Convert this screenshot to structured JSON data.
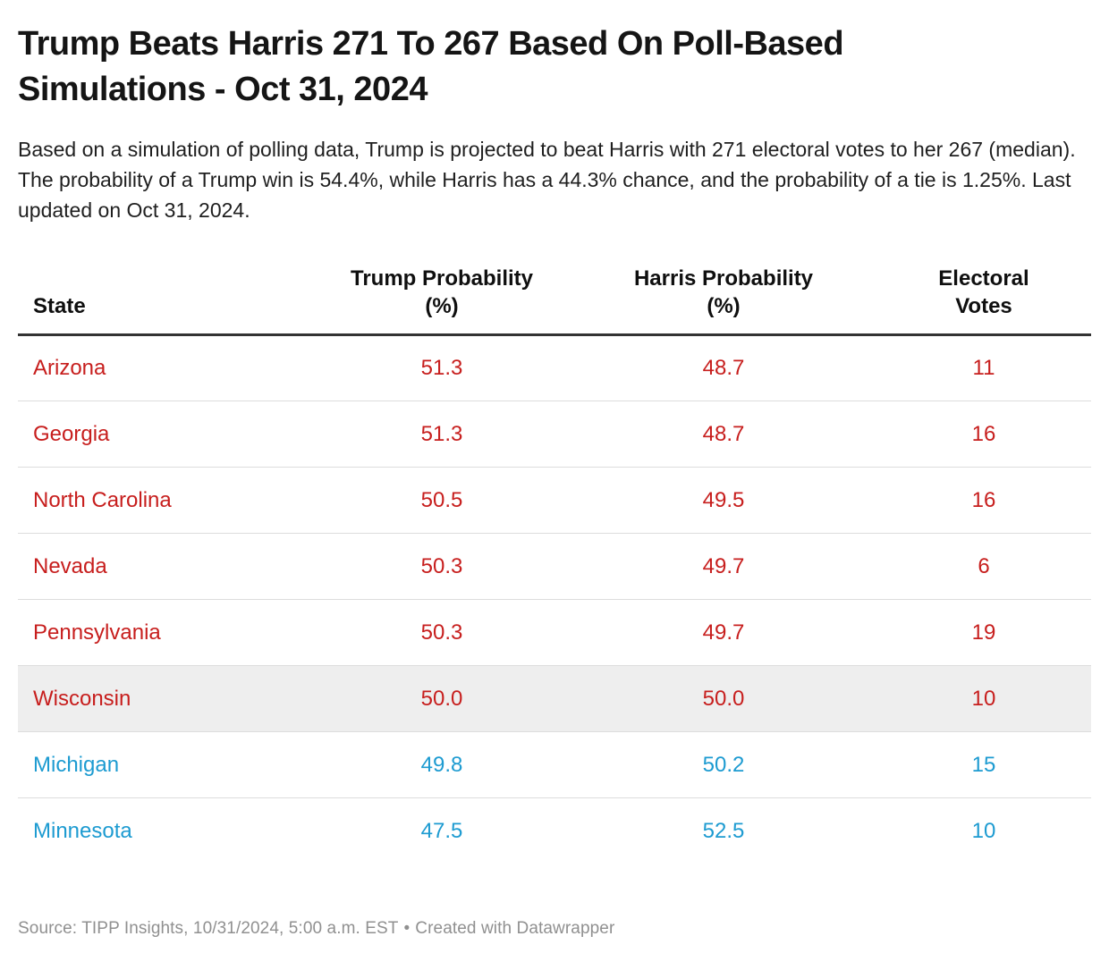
{
  "chart_data": {
    "type": "table",
    "title": "Trump Beats Harris 271 To 267 Based On Poll-Based Simulations - Oct 31, 2024",
    "description": "Based on a simulation of polling data, Trump is projected to beat Harris with 271 electoral votes to her 267 (median). The probability of a Trump win is 54.4%, while Harris has a 44.3% chance, and the probability of a tie is 1.25%. Last updated on Oct 31, 2024.",
    "columns": [
      "State",
      "Trump Probability (%)",
      "Harris Probability (%)",
      "Electoral Votes"
    ],
    "rows": [
      {
        "state": "Arizona",
        "trump": "51.3",
        "harris": "48.7",
        "electoral_votes": "11",
        "leader": "trump",
        "highlighted": false
      },
      {
        "state": "Georgia",
        "trump": "51.3",
        "harris": "48.7",
        "electoral_votes": "16",
        "leader": "trump",
        "highlighted": false
      },
      {
        "state": "North Carolina",
        "trump": "50.5",
        "harris": "49.5",
        "electoral_votes": "16",
        "leader": "trump",
        "highlighted": false
      },
      {
        "state": "Nevada",
        "trump": "50.3",
        "harris": "49.7",
        "electoral_votes": "6",
        "leader": "trump",
        "highlighted": false
      },
      {
        "state": "Pennsylvania",
        "trump": "50.3",
        "harris": "49.7",
        "electoral_votes": "19",
        "leader": "trump",
        "highlighted": false
      },
      {
        "state": "Wisconsin",
        "trump": "50.0",
        "harris": "50.0",
        "electoral_votes": "10",
        "leader": "tie",
        "highlighted": true
      },
      {
        "state": "Michigan",
        "trump": "49.8",
        "harris": "50.2",
        "electoral_votes": "15",
        "leader": "harris",
        "highlighted": false
      },
      {
        "state": "Minnesota",
        "trump": "47.5",
        "harris": "52.5",
        "electoral_votes": "10",
        "leader": "harris",
        "highlighted": false
      }
    ],
    "colors": {
      "trump_lead_text": "#c71e1d",
      "harris_lead_text": "#1d9bd1",
      "highlight_row_bg": "#eeeeee",
      "header_rule": "#333333",
      "row_separator": "#dddddd",
      "footer_text": "#909090"
    },
    "footer": {
      "source": "Source: TIPP Insights, 10/31/2024, 5:00 a.m. EST",
      "separator": "•",
      "credit": "Created with Datawrapper"
    }
  }
}
